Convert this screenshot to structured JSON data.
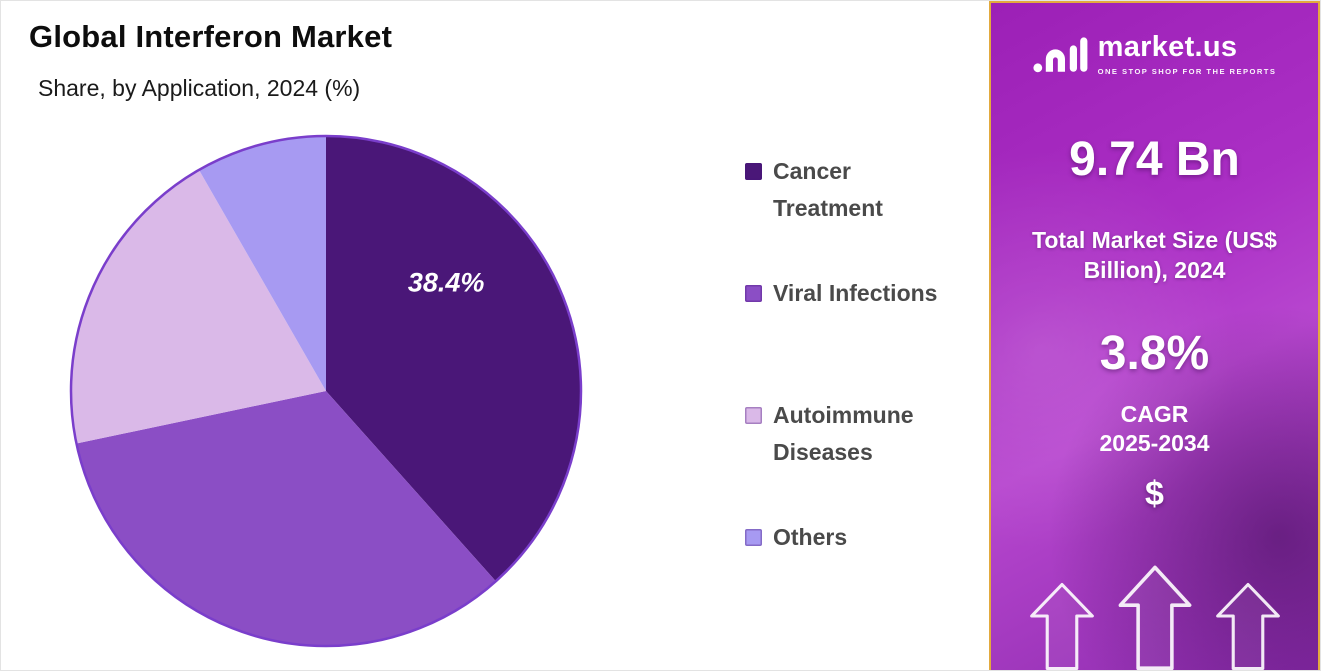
{
  "header": {
    "title": "Global Interferon Market",
    "subtitle": "Share, by Application, 2024 (%)"
  },
  "chart_data": {
    "type": "pie",
    "title": "Global Interferon Market Share, by Application, 2024 (%)",
    "categories": [
      "Cancer Treatment",
      "Viral Infections",
      "Autoimmune Diseases",
      "Others"
    ],
    "values": [
      38.4,
      33.3,
      20.0,
      8.3
    ],
    "colors": [
      "#4a1778",
      "#8b4ec5",
      "#dab9e8",
      "#a79af2"
    ],
    "data_labels": [
      "38.4%",
      "",
      "",
      ""
    ],
    "start_angle": "top",
    "direction": "clockwise",
    "legend_position": "right"
  },
  "legend": {
    "items": [
      {
        "text": "Cancer\nTreatment",
        "color": "#4a1778"
      },
      {
        "text": "Viral Infections",
        "color": "#8b4ec5"
      },
      {
        "text": "Autoimmune\nDiseases",
        "color": "#dab9e8"
      },
      {
        "text": "Others",
        "color": "#a79af2"
      }
    ]
  },
  "sidebar": {
    "logo_text": "market.us",
    "logo_tagline": "ONE STOP SHOP FOR THE REPORTS",
    "market_size_value": "9.74 Bn",
    "market_size_label": "Total Market Size (US$ Billion), 2024",
    "cagr_value": "3.8%",
    "cagr_label": "CAGR",
    "cagr_period": "2025-2034",
    "dollar_symbol": "$",
    "icons": {
      "logo": "marketus-logo",
      "currency": "dollar-sign",
      "growth": "up-arrow-outline-x3"
    }
  },
  "theme": {
    "pie_outline": "#7a3ecb",
    "panel_border": "#e2aa3e",
    "panel_gradient_top": "#9c20b6",
    "panel_gradient_mid": "#b746cf",
    "panel_gradient_bottom": "#8c2bad",
    "legend_text_color": "#4a4a4a"
  }
}
